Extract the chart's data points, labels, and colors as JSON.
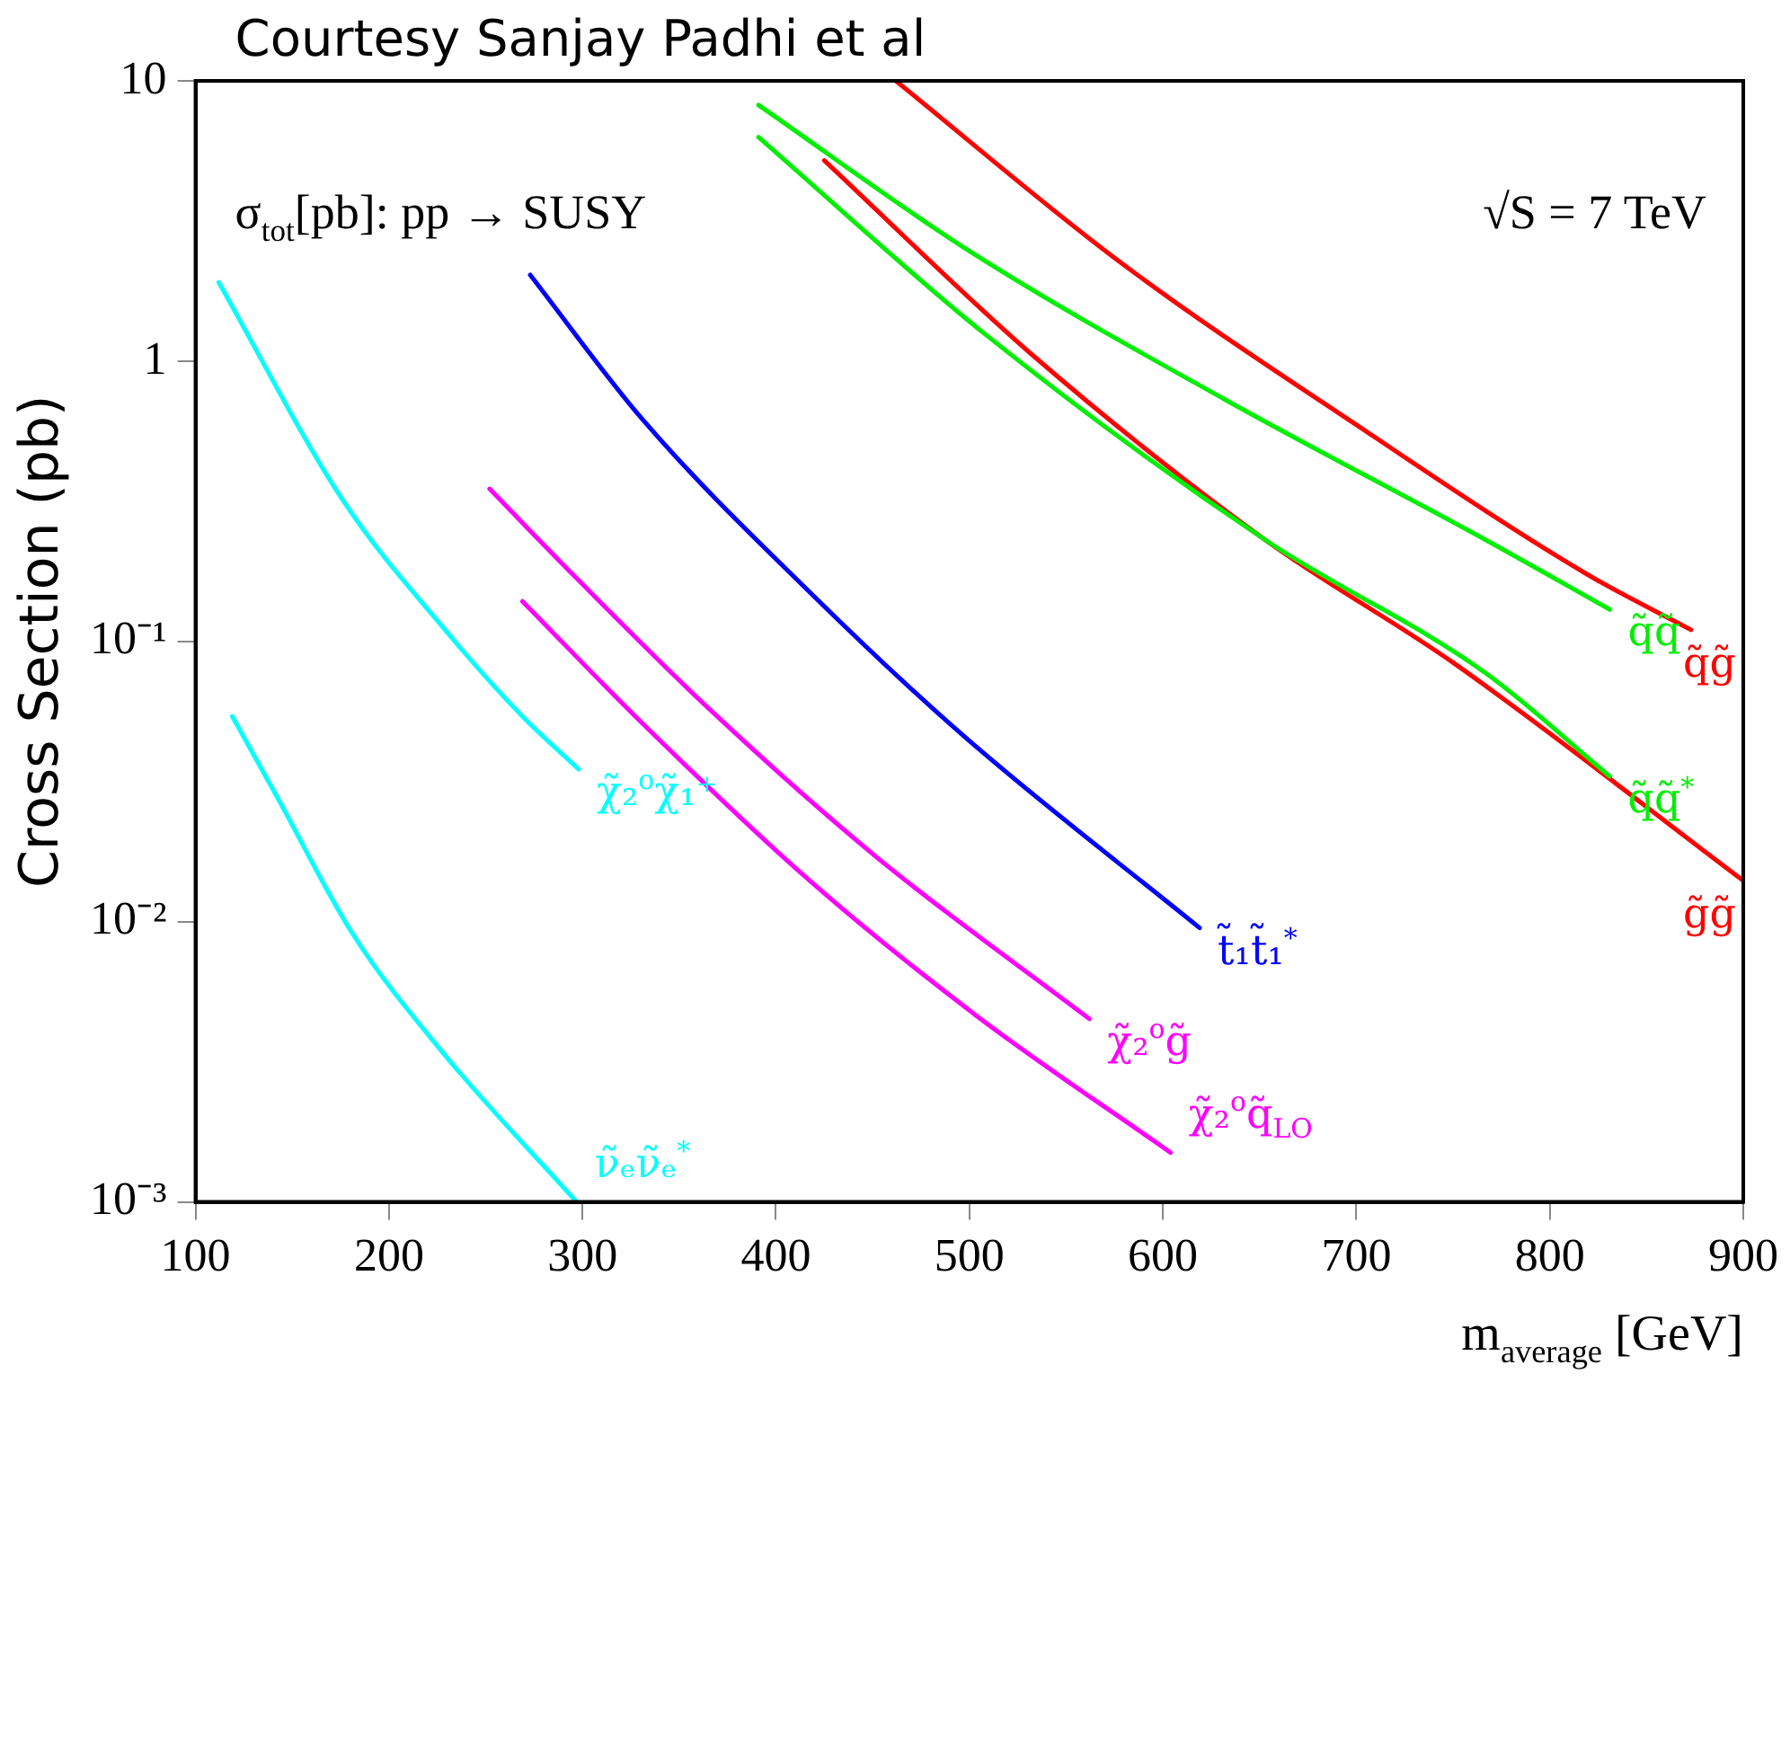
{
  "chart_data": {
    "type": "line",
    "xlabel": "m$_{average}$ [GeV]",
    "ylabel": "Cross Section (pb)",
    "annotations": [
      "Courtesy Sanjay Padhi et al",
      "σ$_{tot}$[pb]: pp → SUSY",
      "√S = 7 TeV"
    ],
    "log": "y",
    "marker": "none",
    "line_style": "solid",
    "xlim": [
      100,
      900
    ],
    "xticks": [
      100,
      200,
      300,
      400,
      500,
      600,
      700,
      800,
      900
    ],
    "ylim": [
      0.001,
      10
    ],
    "yticks": [
      10,
      1,
      {
        "value": 0.1,
        "label": "10⁻¹"
      },
      {
        "value": 0.01,
        "label": "10⁻²"
      },
      {
        "value": 0.001,
        "label": "10⁻³"
      }
    ],
    "series": [
      {
        "name": "q̃g̃",
        "color": "#ff0000",
        "x": [
          462,
          577,
          702,
          819,
          873
        ],
        "values": [
          10,
          2.28,
          0.58,
          0.174,
          0.11
        ]
      },
      {
        "name": "q̃q̃",
        "color": "#00ee00",
        "x": [
          391,
          500,
          632,
          767,
          831
        ],
        "values": [
          8.2,
          2.47,
          0.73,
          0.23,
          0.13
        ]
      },
      {
        "name": "q̃q̃$^{*}$",
        "color": "#00ee00",
        "x": [
          391,
          508,
          653,
          767,
          831
        ],
        "values": [
          6.3,
          1.25,
          0.23,
          0.077,
          0.033
        ]
      },
      {
        "name": "g̃g̃",
        "color": "#ff0000",
        "x": [
          425,
          532,
          653,
          750,
          900
        ],
        "values": [
          5.2,
          1.06,
          0.23,
          0.084,
          0.014
        ]
      },
      {
        "name": "t̃₁t̃₁$^{*}$",
        "color": "#0000ff",
        "x": [
          273,
          331,
          417,
          497,
          619
        ],
        "values": [
          2.03,
          0.62,
          0.151,
          0.046,
          0.0095
        ]
      },
      {
        "name": "χ̃₂$^{o}$g̃",
        "color": "#ff00ff",
        "x": [
          252,
          297,
          366,
          452,
          562
        ],
        "values": [
          0.35,
          0.168,
          0.057,
          0.017,
          0.0045
        ]
      },
      {
        "name": "χ̃₂$^{o}$q̃$_{LO}$",
        "color": "#ff00ff",
        "x": [
          269,
          331,
          417,
          504,
          604
        ],
        "values": [
          0.139,
          0.051,
          0.0141,
          0.0046,
          0.0015
        ]
      },
      {
        "name": "χ̃₂$^{o}$χ̃₁⁺",
        "color": "#00ffff",
        "x": [
          112,
          176,
          228,
          269,
          298
        ],
        "values": [
          1.91,
          0.32,
          0.112,
          0.054,
          0.035
        ]
      },
      {
        "name": "ν̃ₑν̃ₑ$^{*}$",
        "color": "#00ffff",
        "x": [
          119,
          142,
          181,
          228,
          297
        ],
        "values": [
          0.054,
          0.028,
          0.0091,
          0.0034,
          0.001
        ]
      }
    ]
  }
}
